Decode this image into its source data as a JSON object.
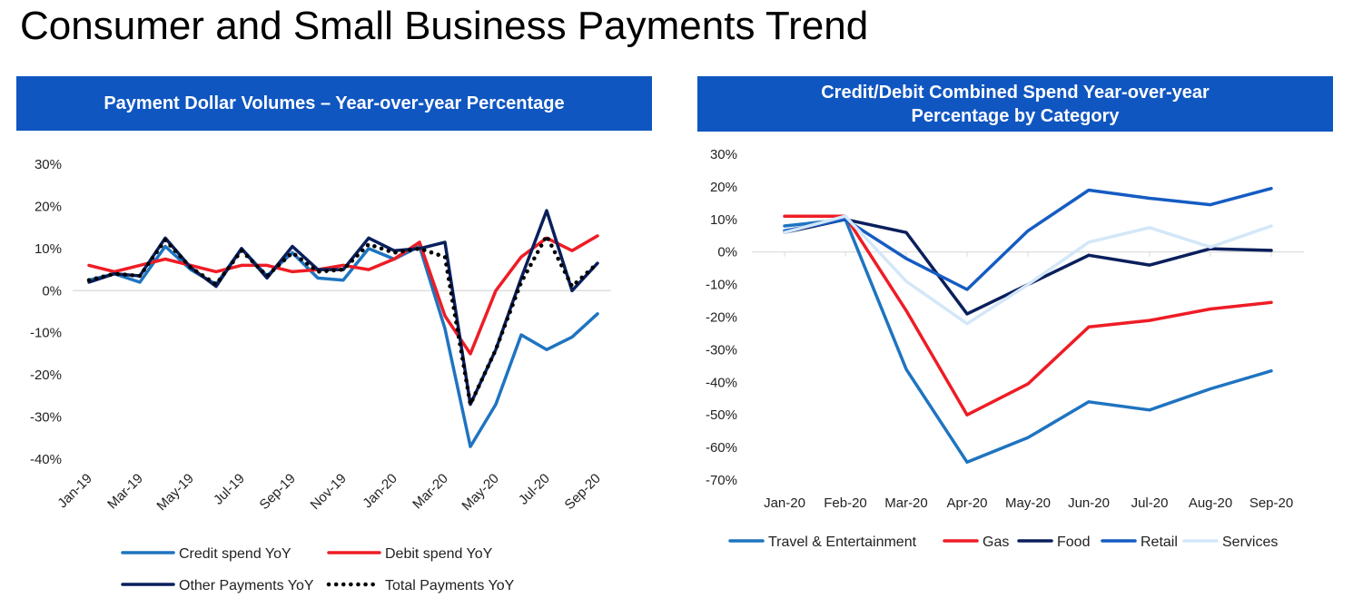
{
  "page": {
    "title": "Consumer and Small Business Payments Trend"
  },
  "chart_data": [
    {
      "type": "line",
      "title": "Payment Dollar Volumes – Year-over-year Percentage",
      "xlabel": "",
      "ylabel": "",
      "ylim": [
        -40,
        30
      ],
      "y_ticks": [
        "30%",
        "20%",
        "10%",
        "0%",
        "-10%",
        "-20%",
        "-30%",
        "-40%"
      ],
      "y_tick_values": [
        30,
        20,
        10,
        0,
        -10,
        -20,
        -30,
        -40
      ],
      "categories": [
        "Jan-19",
        "Feb-19",
        "Mar-19",
        "Apr-19",
        "May-19",
        "Jun-19",
        "Jul-19",
        "Aug-19",
        "Sep-19",
        "Oct-19",
        "Nov-19",
        "Dec-19",
        "Jan-20",
        "Feb-20",
        "Mar-20",
        "Apr-20",
        "May-20",
        "Jun-20",
        "Jul-20",
        "Aug-20",
        "Sep-20"
      ],
      "x_tick_labels": [
        "Jan-19",
        "Mar-19",
        "May-19",
        "Jul-19",
        "Sep-19",
        "Nov-19",
        "Jan-20",
        "Mar-20",
        "May-20",
        "Jul-20",
        "Sep-20"
      ],
      "grid": false,
      "legend_position": "bottom",
      "series": [
        {
          "name": "Credit spend YoY",
          "color": "#1e74c0",
          "style": "solid",
          "values": [
            2.5,
            4,
            2,
            10.5,
            5,
            1.5,
            10,
            3.5,
            9,
            3,
            2.5,
            10,
            7.5,
            10.5,
            -9,
            -37,
            -27,
            -10.5,
            -14,
            -11,
            -5.5
          ]
        },
        {
          "name": "Debit spend YoY",
          "color": "#ee1c25",
          "style": "solid",
          "values": [
            6,
            4.5,
            6,
            7.5,
            6,
            4.5,
            6,
            6,
            4.5,
            5,
            6,
            5,
            7.5,
            11.5,
            -6,
            -15,
            0,
            8,
            12.5,
            9.5,
            13
          ]
        },
        {
          "name": "Other Payments YoY",
          "color": "#0a1f5c",
          "style": "solid",
          "values": [
            2,
            4,
            3.5,
            12.5,
            5.5,
            1,
            10,
            3,
            10.5,
            5,
            5,
            12.5,
            9.5,
            10,
            11.5,
            -27,
            -14,
            3,
            19,
            0,
            6.5
          ]
        },
        {
          "name": "Total Payments YoY",
          "color": "#000000",
          "style": "dotted",
          "values": [
            2.5,
            4,
            3.5,
            12,
            5.5,
            1.5,
            9.5,
            3.5,
            9,
            4.5,
            5,
            11,
            9,
            10,
            8,
            -27,
            -14,
            2,
            13,
            1,
            6.5
          ]
        }
      ]
    },
    {
      "type": "line",
      "title": "Credit/Debit Combined Spend Year-over-year Percentage by Category",
      "xlabel": "",
      "ylabel": "",
      "ylim": [
        -70,
        30
      ],
      "y_ticks": [
        "30%",
        "20%",
        "10%",
        "0%",
        "-10%",
        "-20%",
        "-30%",
        "-40%",
        "-50%",
        "-60%",
        "-70%"
      ],
      "y_tick_values": [
        30,
        20,
        10,
        0,
        -10,
        -20,
        -30,
        -40,
        -50,
        -60,
        -70
      ],
      "categories": [
        "Jan-20",
        "Feb-20",
        "Mar-20",
        "Apr-20",
        "May-20",
        "Jun-20",
        "Jul-20",
        "Aug-20",
        "Sep-20"
      ],
      "grid": false,
      "legend_position": "bottom",
      "series": [
        {
          "name": "Travel & Entertainment",
          "color": "#1e74c0",
          "style": "solid",
          "values": [
            8,
            10,
            -36,
            -64.5,
            -57,
            -46,
            -48.5,
            -42,
            -36.5
          ]
        },
        {
          "name": "Gas",
          "color": "#ee1c25",
          "style": "solid",
          "values": [
            11,
            11,
            -18,
            -50,
            -40.5,
            -23,
            -21,
            -17.5,
            -15.5
          ]
        },
        {
          "name": "Food",
          "color": "#0a1f5c",
          "style": "solid",
          "values": [
            6,
            10,
            6,
            -19,
            -10,
            -1,
            -4,
            1,
            0.5
          ]
        },
        {
          "name": "Retail",
          "color": "#155cc2",
          "style": "solid",
          "values": [
            6.5,
            10,
            -2,
            -11.5,
            6.5,
            19,
            16.5,
            14.5,
            19.5
          ]
        },
        {
          "name": "Services",
          "color": "#d3e7f8",
          "style": "solid",
          "values": [
            6,
            11,
            -9,
            -22,
            -10,
            3,
            7.5,
            1.5,
            8
          ]
        }
      ]
    }
  ]
}
